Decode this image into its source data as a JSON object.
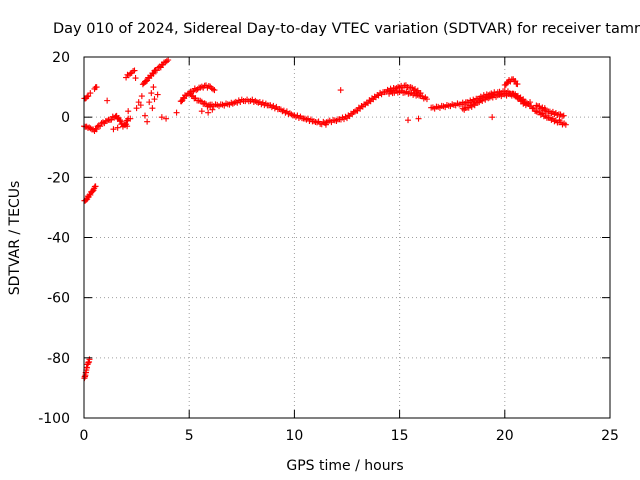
{
  "colors": {
    "series": "#ff0000",
    "grid": "#a0a0a0",
    "axis": "#000000",
    "background": "#ffffff"
  },
  "chart_data": {
    "type": "scatter",
    "title": "Day 010 of 2024, Sidereal Day-to-day VTEC variation (SDTVAR) for receiver tamr",
    "xlabel": "GPS time / hours",
    "ylabel": "SDTVAR / TECUs",
    "xlim": [
      0,
      25
    ],
    "ylim": [
      -100,
      20
    ],
    "xticks": [
      0,
      5,
      10,
      15,
      20,
      25
    ],
    "yticks": [
      -100,
      -80,
      -60,
      -40,
      -20,
      0,
      20
    ],
    "grid": true,
    "marker": "plus",
    "series": [
      {
        "name": "SDTVAR",
        "segments": [
          [
            [
              0.02,
              -87
            ],
            [
              0.08,
              -85
            ],
            [
              0.14,
              -83
            ],
            [
              0.2,
              -82
            ],
            [
              0.26,
              -80.5
            ]
          ],
          [
            [
              0.02,
              -28
            ],
            [
              0.15,
              -27
            ],
            [
              0.3,
              -25.5
            ],
            [
              0.45,
              -24
            ],
            [
              0.55,
              -23
            ]
          ],
          [
            [
              0.0,
              -3
            ],
            [
              0.25,
              -3.5
            ],
            [
              0.5,
              -4.5
            ],
            [
              0.7,
              -3
            ],
            [
              0.9,
              -2
            ],
            [
              1.1,
              -1.2
            ],
            [
              1.3,
              -0.5
            ],
            [
              1.5,
              0.5
            ],
            [
              1.7,
              -1
            ],
            [
              1.85,
              -3
            ],
            [
              2.0,
              -2
            ],
            [
              2.1,
              -0.5
            ]
          ],
          [
            [
              0.02,
              6
            ],
            [
              0.1,
              6.5
            ],
            [
              0.2,
              7
            ]
          ],
          [
            [
              0.5,
              9.5
            ],
            [
              0.6,
              10
            ]
          ],
          [
            [
              2.0,
              13.5
            ],
            [
              2.2,
              14.5
            ],
            [
              2.4,
              15.5
            ]
          ],
          [
            [
              2.8,
              11
            ],
            [
              3.0,
              12.5
            ],
            [
              3.2,
              14
            ],
            [
              3.4,
              15.5
            ],
            [
              3.6,
              16.5
            ],
            [
              3.8,
              18
            ],
            [
              4.0,
              19
            ]
          ],
          [
            [
              4.6,
              5
            ],
            [
              4.8,
              7
            ],
            [
              5.0,
              8
            ],
            [
              5.2,
              9
            ],
            [
              5.4,
              9.5
            ],
            [
              5.6,
              10
            ],
            [
              5.8,
              10.2
            ],
            [
              6.0,
              10
            ],
            [
              6.2,
              9
            ]
          ],
          [
            [
              5.0,
              8
            ],
            [
              5.3,
              6
            ],
            [
              5.6,
              5
            ],
            [
              5.8,
              4
            ],
            [
              6.0,
              3.5
            ]
          ],
          [
            [
              6.0,
              4
            ],
            [
              6.5,
              4
            ],
            [
              7.0,
              4.5
            ],
            [
              7.5,
              5.5
            ],
            [
              8.0,
              5.5
            ],
            [
              8.5,
              4.5
            ],
            [
              9.0,
              3.5
            ],
            [
              9.5,
              2
            ],
            [
              10.0,
              0.5
            ],
            [
              10.5,
              -0.5
            ],
            [
              11.0,
              -1.5
            ],
            [
              11.3,
              -2
            ],
            [
              11.6,
              -1.5
            ],
            [
              12.0,
              -1
            ],
            [
              12.5,
              0
            ],
            [
              13.0,
              2.5
            ],
            [
              13.5,
              5
            ],
            [
              14.0,
              7.5
            ],
            [
              14.5,
              9
            ],
            [
              15.0,
              10
            ],
            [
              15.3,
              10.3
            ],
            [
              15.6,
              9.5
            ],
            [
              16.0,
              8
            ]
          ],
          [
            [
              14.5,
              8
            ],
            [
              15.0,
              8.5
            ],
            [
              15.5,
              8
            ],
            [
              16.0,
              7
            ],
            [
              16.3,
              6
            ]
          ],
          [
            [
              16.5,
              3
            ],
            [
              17.0,
              3.5
            ],
            [
              17.5,
              4
            ],
            [
              18.0,
              4.5
            ],
            [
              18.5,
              5.5
            ],
            [
              19.0,
              7
            ],
            [
              19.5,
              8
            ],
            [
              20.0,
              8.5
            ],
            [
              20.3,
              8
            ],
            [
              20.7,
              6
            ],
            [
              21.0,
              4
            ]
          ],
          [
            [
              18.0,
              2.5
            ],
            [
              18.5,
              4
            ],
            [
              19.0,
              6
            ],
            [
              19.5,
              7
            ],
            [
              20.0,
              7.5
            ],
            [
              20.5,
              7.5
            ],
            [
              21.0,
              5
            ],
            [
              21.5,
              2
            ],
            [
              22.0,
              0
            ],
            [
              22.5,
              -1.5
            ],
            [
              22.9,
              -2.5
            ]
          ],
          [
            [
              20.0,
              10.5
            ],
            [
              20.2,
              12
            ],
            [
              20.4,
              12.5
            ],
            [
              20.6,
              11
            ]
          ],
          [
            [
              21.5,
              4
            ],
            [
              22.0,
              2
            ],
            [
              22.5,
              1
            ],
            [
              22.8,
              0.5
            ]
          ]
        ],
        "scatter": [
          [
            0.3,
            8
          ],
          [
            1.1,
            5.5
          ],
          [
            1.4,
            -4
          ],
          [
            1.6,
            -3.5
          ],
          [
            2.05,
            -3
          ],
          [
            2.1,
            2
          ],
          [
            2.2,
            -0.5
          ],
          [
            2.45,
            13
          ],
          [
            2.5,
            3
          ],
          [
            2.6,
            5
          ],
          [
            2.7,
            4
          ],
          [
            2.75,
            7
          ],
          [
            2.9,
            0.5
          ],
          [
            3.0,
            -1.5
          ],
          [
            3.1,
            5
          ],
          [
            3.2,
            8
          ],
          [
            3.3,
            10
          ],
          [
            3.25,
            3
          ],
          [
            3.35,
            6
          ],
          [
            3.5,
            7.5
          ],
          [
            3.7,
            0
          ],
          [
            3.9,
            -0.5
          ],
          [
            4.4,
            1.5
          ],
          [
            5.6,
            2
          ],
          [
            5.9,
            1.5
          ],
          [
            6.1,
            2.5
          ],
          [
            11.5,
            -2.5
          ],
          [
            12.2,
            9
          ],
          [
            15.4,
            -1
          ],
          [
            15.9,
            -0.5
          ],
          [
            19.4,
            0
          ],
          [
            20.6,
            6.5
          ],
          [
            21.2,
            5
          ],
          [
            21.9,
            3
          ],
          [
            22.6,
            -1
          ]
        ]
      }
    ]
  }
}
